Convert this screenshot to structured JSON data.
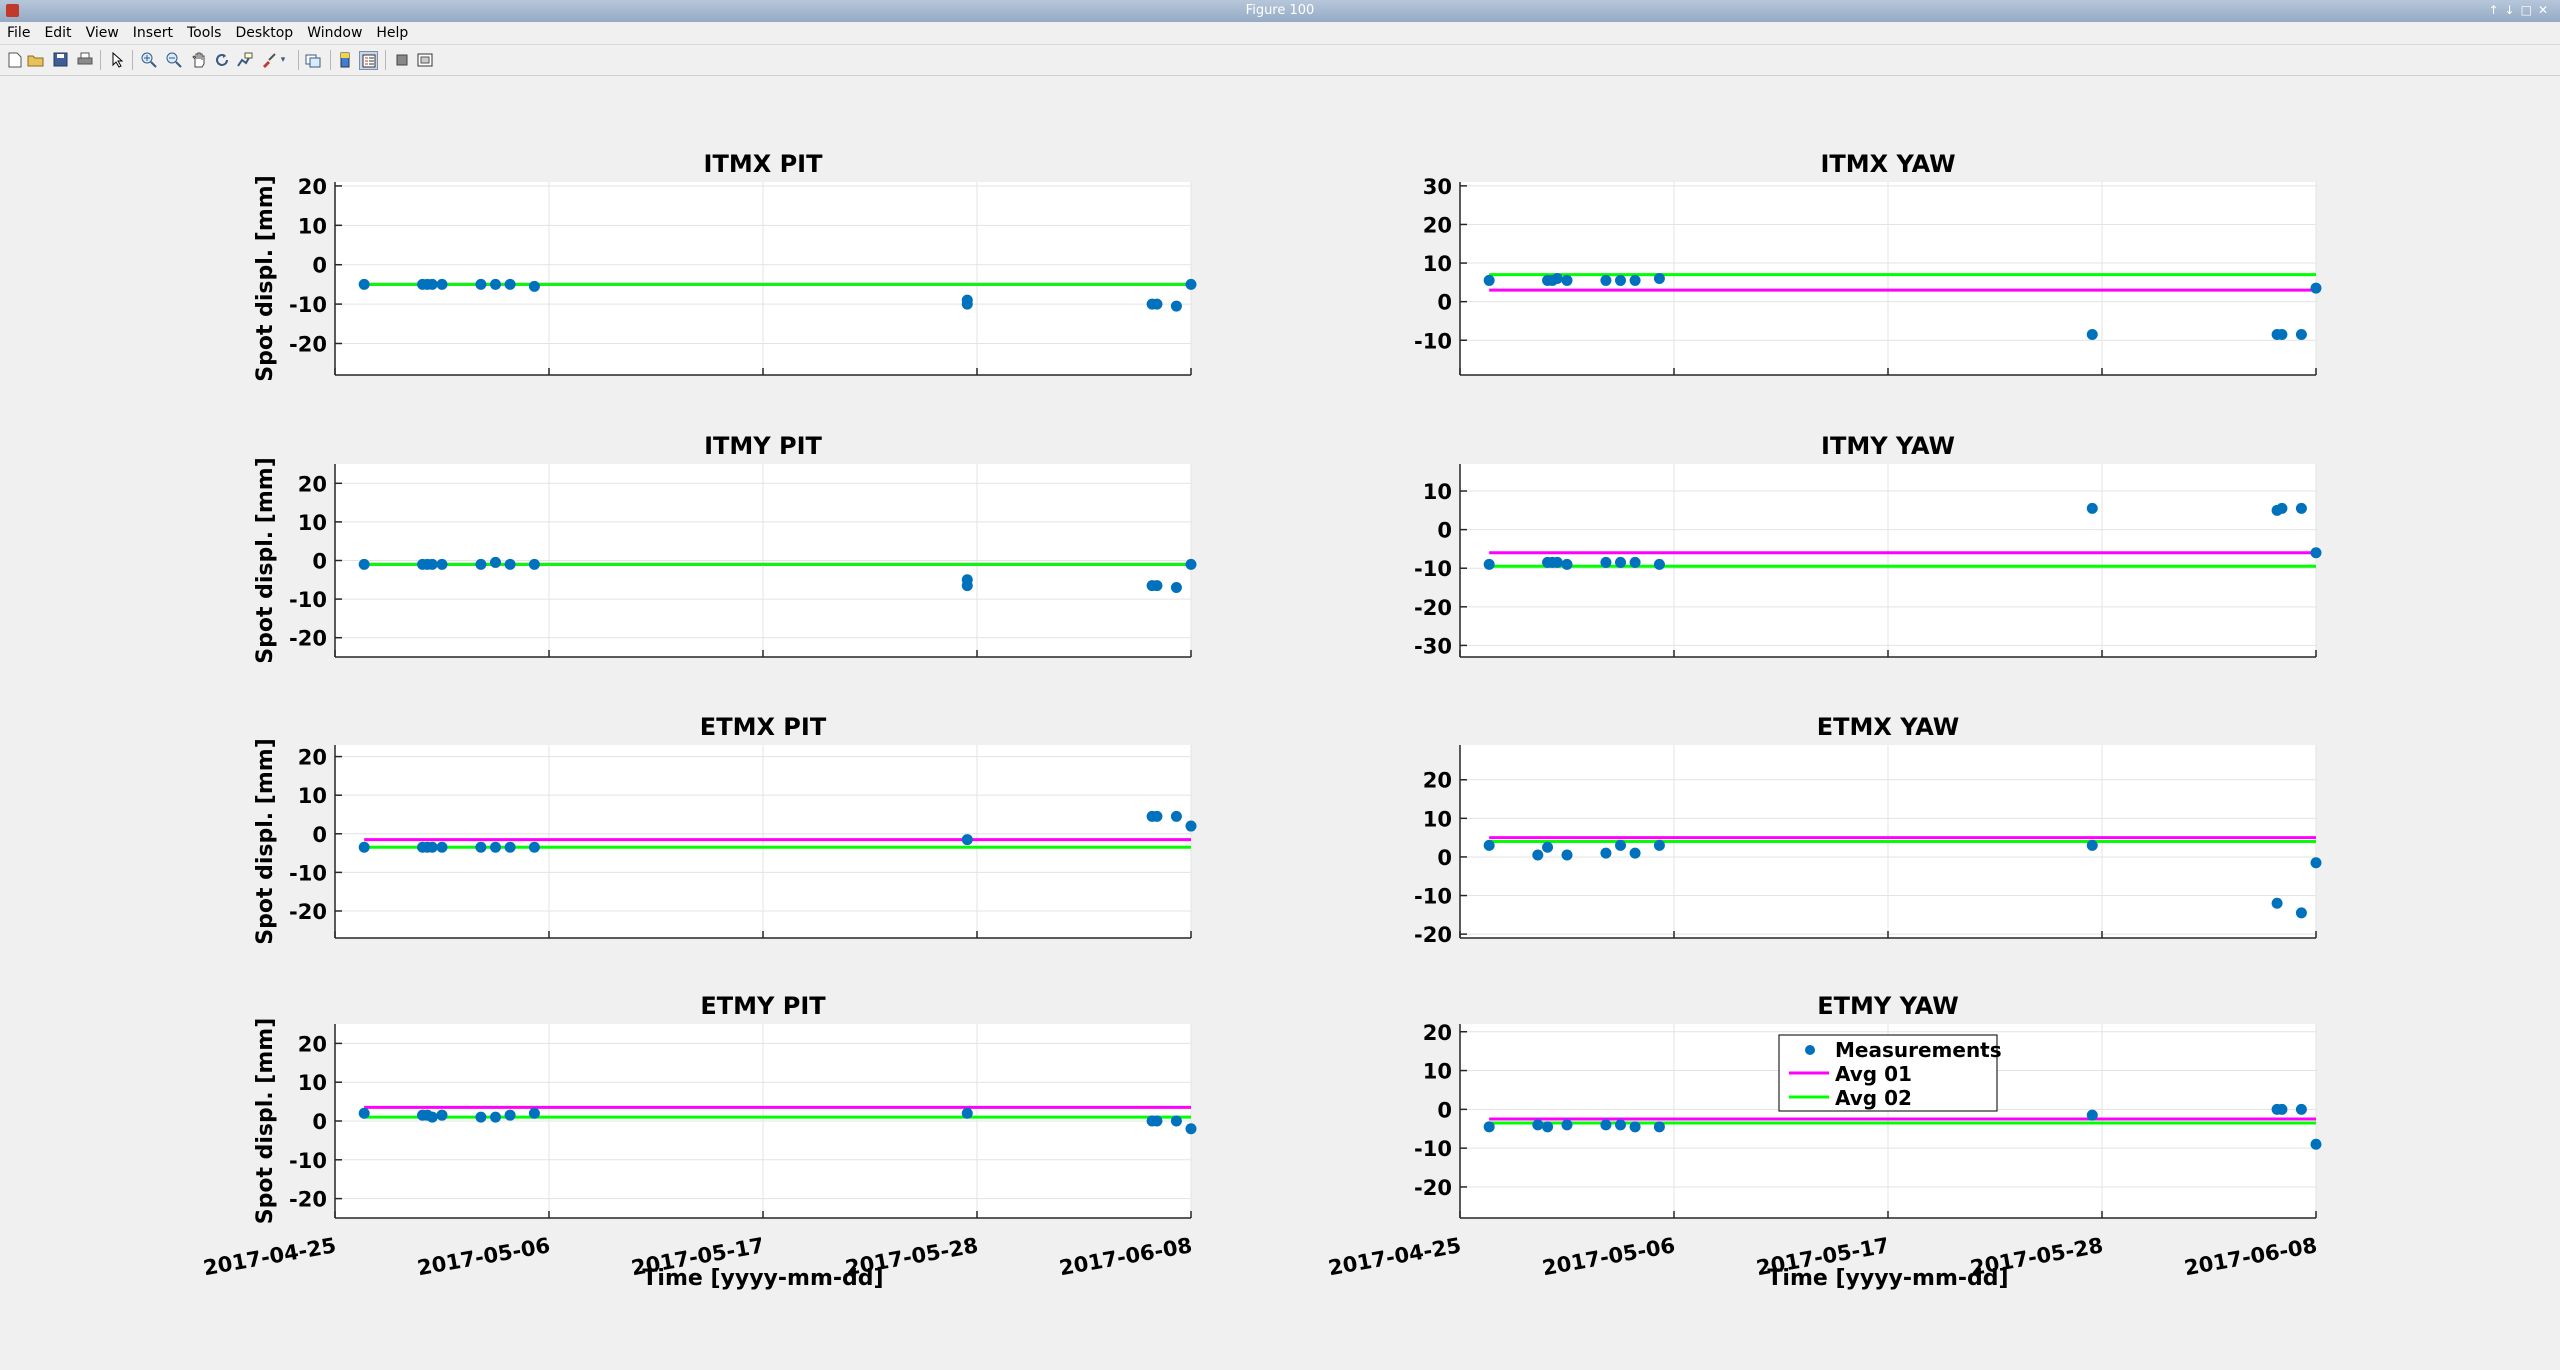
{
  "window": {
    "title": "Figure 100",
    "controls": [
      "↑",
      "↓",
      "□",
      "✕"
    ]
  },
  "menu": [
    "File",
    "Edit",
    "View",
    "Insert",
    "Tools",
    "Desktop",
    "Window",
    "Help"
  ],
  "toolbar": {
    "icons": [
      "new-figure-icon",
      "open-file-icon",
      "save-icon",
      "print-icon",
      "pointer-icon",
      "zoom-in-icon",
      "zoom-out-icon",
      "pan-icon",
      "rotate-icon",
      "data-cursor-icon",
      "brush-icon",
      "link-icon",
      "colorbar-icon",
      "legend-icon",
      "hide-plot-tools-icon",
      "show-plot-tools-icon"
    ]
  },
  "chart_data": {
    "type": "scatter",
    "colors": {
      "measurements": "#0072bd",
      "avg01": "#ff00ff",
      "avg02": "#00ff00"
    },
    "legend": {
      "entries": [
        "Measurements",
        "Avg 01",
        "Avg 02"
      ],
      "placement": "top-center, inside ETMY YAW axes"
    },
    "xlabel": "Time [yyyy-mm-dd]",
    "ylabel": "Spot displ. [mm]",
    "xlim": [
      "2017-04-25",
      "2017-06-08"
    ],
    "xticks": [
      "2017-04-25",
      "2017-05-06",
      "2017-05-17",
      "2017-05-28",
      "2017-06-08"
    ],
    "grid": true,
    "panels": [
      {
        "title": "ITMX PIT",
        "ylim": [
          -28,
          21
        ],
        "yticks": [
          -20,
          -10,
          0,
          10,
          20
        ],
        "ylabel": "Spot displ. [mm]",
        "avg01": -5,
        "avg02": -5,
        "points": [
          [
            "2017-04-26 12:00",
            -5
          ],
          [
            "2017-04-29 12:00",
            -5
          ],
          [
            "2017-04-29 18:00",
            -5
          ],
          [
            "2017-04-30 00:00",
            -5
          ],
          [
            "2017-04-30 12:00",
            -5
          ],
          [
            "2017-05-02 12:00",
            -5
          ],
          [
            "2017-05-03 06:00",
            -5
          ],
          [
            "2017-05-04 00:00",
            -5
          ],
          [
            "2017-05-05 06:00",
            -5.5
          ],
          [
            "2017-05-27 12:00",
            -9
          ],
          [
            "2017-05-27 12:00",
            -10
          ],
          [
            "2017-06-06 00:00",
            -10
          ],
          [
            "2017-06-06 06:00",
            -10
          ],
          [
            "2017-06-07 06:00",
            -10.5
          ],
          [
            "2017-06-08 00:00",
            -5
          ]
        ]
      },
      {
        "title": "ITMX YAW",
        "ylim": [
          -19,
          31
        ],
        "yticks": [
          -10,
          0,
          10,
          20,
          30
        ],
        "ylabel": "",
        "avg01": 3,
        "avg02": 7,
        "points": [
          [
            "2017-04-26 12:00",
            5.5
          ],
          [
            "2017-04-29 12:00",
            5.5
          ],
          [
            "2017-04-29 18:00",
            5.5
          ],
          [
            "2017-04-30 00:00",
            6
          ],
          [
            "2017-04-30 12:00",
            5.5
          ],
          [
            "2017-05-02 12:00",
            5.5
          ],
          [
            "2017-05-03 06:00",
            5.5
          ],
          [
            "2017-05-04 00:00",
            5.5
          ],
          [
            "2017-05-05 06:00",
            6
          ],
          [
            "2017-05-27 12:00",
            -8.5
          ],
          [
            "2017-06-06 00:00",
            -8.5
          ],
          [
            "2017-06-06 06:00",
            -8.5
          ],
          [
            "2017-06-07 06:00",
            -8.5
          ],
          [
            "2017-06-08 00:00",
            3.5
          ]
        ]
      },
      {
        "title": "ITMY PIT",
        "ylim": [
          -25,
          25
        ],
        "yticks": [
          -20,
          -10,
          0,
          10,
          20
        ],
        "ylabel": "Spot displ. [mm]",
        "avg01": -1,
        "avg02": -1,
        "points": [
          [
            "2017-04-26 12:00",
            -1
          ],
          [
            "2017-04-29 12:00",
            -1
          ],
          [
            "2017-04-29 18:00",
            -1
          ],
          [
            "2017-04-30 00:00",
            -1
          ],
          [
            "2017-04-30 12:00",
            -1
          ],
          [
            "2017-05-02 12:00",
            -1
          ],
          [
            "2017-05-03 06:00",
            -0.5
          ],
          [
            "2017-05-04 00:00",
            -1
          ],
          [
            "2017-05-05 06:00",
            -1
          ],
          [
            "2017-05-27 12:00",
            -5
          ],
          [
            "2017-05-27 12:00",
            -6.5
          ],
          [
            "2017-06-06 00:00",
            -6.5
          ],
          [
            "2017-06-06 06:00",
            -6.5
          ],
          [
            "2017-06-07 06:00",
            -7
          ],
          [
            "2017-06-08 00:00",
            -1
          ]
        ]
      },
      {
        "title": "ITMY YAW",
        "ylim": [
          -33,
          17
        ],
        "yticks": [
          -30,
          -20,
          -10,
          0,
          10
        ],
        "ylabel": "",
        "avg01": -6,
        "avg02": -9.5,
        "points": [
          [
            "2017-04-26 12:00",
            -9
          ],
          [
            "2017-04-29 12:00",
            -8.5
          ],
          [
            "2017-04-29 18:00",
            -8.5
          ],
          [
            "2017-04-30 00:00",
            -8.5
          ],
          [
            "2017-04-30 12:00",
            -9
          ],
          [
            "2017-05-02 12:00",
            -8.5
          ],
          [
            "2017-05-03 06:00",
            -8.5
          ],
          [
            "2017-05-04 00:00",
            -8.5
          ],
          [
            "2017-05-05 06:00",
            -9
          ],
          [
            "2017-05-27 12:00",
            5.5
          ],
          [
            "2017-06-06 00:00",
            5
          ],
          [
            "2017-06-06 06:00",
            5.5
          ],
          [
            "2017-06-07 06:00",
            5.5
          ],
          [
            "2017-06-08 00:00",
            -6
          ]
        ]
      },
      {
        "title": "ETMX PIT",
        "ylim": [
          -27,
          23
        ],
        "yticks": [
          -20,
          -10,
          0,
          10,
          20
        ],
        "ylabel": "Spot displ. [mm]",
        "avg01": -1.5,
        "avg02": -3.5,
        "points": [
          [
            "2017-04-26 12:00",
            -3.5
          ],
          [
            "2017-04-29 12:00",
            -3.5
          ],
          [
            "2017-04-29 18:00",
            -3.5
          ],
          [
            "2017-04-30 00:00",
            -3.5
          ],
          [
            "2017-04-30 12:00",
            -3.5
          ],
          [
            "2017-05-02 12:00",
            -3.5
          ],
          [
            "2017-05-03 06:00",
            -3.5
          ],
          [
            "2017-05-04 00:00",
            -3.5
          ],
          [
            "2017-05-05 06:00",
            -3.5
          ],
          [
            "2017-05-27 12:00",
            -1.5
          ],
          [
            "2017-06-06 00:00",
            4.5
          ],
          [
            "2017-06-06 06:00",
            4.5
          ],
          [
            "2017-06-07 06:00",
            4.5
          ],
          [
            "2017-06-08 00:00",
            2
          ]
        ]
      },
      {
        "title": "ETMX YAW",
        "ylim": [
          -21,
          29
        ],
        "yticks": [
          -20,
          -10,
          0,
          10,
          20
        ],
        "ylabel": "",
        "avg01": 5,
        "avg02": 4,
        "points": [
          [
            "2017-04-26 12:00",
            3
          ],
          [
            "2017-04-29 00:00",
            0.5
          ],
          [
            "2017-04-29 12:00",
            2.5
          ],
          [
            "2017-04-30 12:00",
            0.5
          ],
          [
            "2017-05-02 12:00",
            1
          ],
          [
            "2017-05-03 06:00",
            3
          ],
          [
            "2017-05-04 00:00",
            1
          ],
          [
            "2017-05-05 06:00",
            3
          ],
          [
            "2017-05-27 12:00",
            3
          ],
          [
            "2017-06-06 00:00",
            -12
          ],
          [
            "2017-06-07 06:00",
            -14.5
          ],
          [
            "2017-06-08 00:00",
            -1.5
          ]
        ]
      },
      {
        "title": "ETMY PIT",
        "ylim": [
          -25,
          25
        ],
        "yticks": [
          -20,
          -10,
          0,
          10,
          20
        ],
        "ylabel": "Spot displ. [mm]",
        "avg01": 3.5,
        "avg02": 1,
        "points": [
          [
            "2017-04-26 12:00",
            2
          ],
          [
            "2017-04-29 12:00",
            1.5
          ],
          [
            "2017-04-29 18:00",
            1.5
          ],
          [
            "2017-04-30 00:00",
            1
          ],
          [
            "2017-04-30 12:00",
            1.5
          ],
          [
            "2017-05-02 12:00",
            1
          ],
          [
            "2017-05-03 06:00",
            1
          ],
          [
            "2017-05-04 00:00",
            1.5
          ],
          [
            "2017-05-05 06:00",
            2
          ],
          [
            "2017-05-27 12:00",
            2
          ],
          [
            "2017-06-06 00:00",
            0
          ],
          [
            "2017-06-06 06:00",
            0
          ],
          [
            "2017-06-07 06:00",
            0
          ],
          [
            "2017-06-08 00:00",
            -2
          ]
        ]
      },
      {
        "title": "ETMY YAW",
        "ylim": [
          -28,
          22
        ],
        "yticks": [
          -20,
          -10,
          0,
          10,
          20
        ],
        "ylabel": "",
        "avg01": -2.5,
        "avg02": -3.5,
        "points": [
          [
            "2017-04-26 12:00",
            -4.5
          ],
          [
            "2017-04-29 00:00",
            -4
          ],
          [
            "2017-04-29 12:00",
            -4.5
          ],
          [
            "2017-04-30 12:00",
            -4
          ],
          [
            "2017-05-02 12:00",
            -4
          ],
          [
            "2017-05-03 06:00",
            -4
          ],
          [
            "2017-05-04 00:00",
            -4.5
          ],
          [
            "2017-05-05 06:00",
            -4.5
          ],
          [
            "2017-05-27 12:00",
            -1.5
          ],
          [
            "2017-06-06 00:00",
            0
          ],
          [
            "2017-06-06 06:00",
            0
          ],
          [
            "2017-06-07 06:00",
            0
          ],
          [
            "2017-06-08 00:00",
            -9
          ]
        ]
      }
    ]
  }
}
